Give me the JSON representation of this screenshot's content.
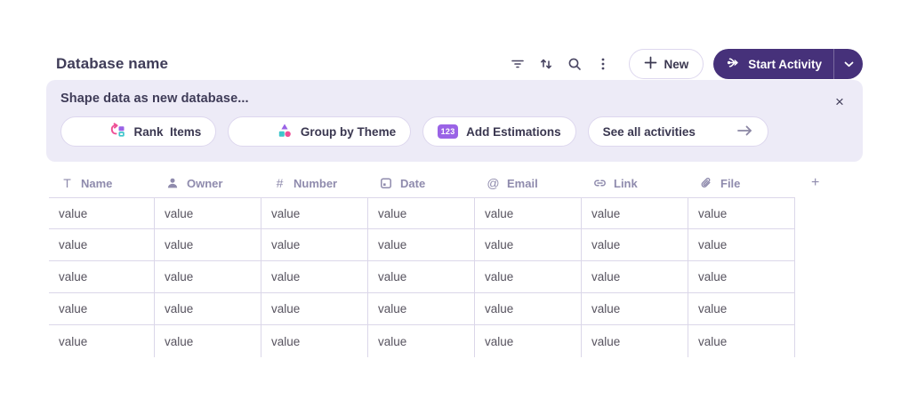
{
  "header": {
    "title": "Database name",
    "toolbar_icons": [
      "filter-icon",
      "sort-icon",
      "search-icon",
      "overflow-menu-icon"
    ],
    "new_button_label": "New",
    "start_activity_label": "Start Activity"
  },
  "banner": {
    "title": "Shape data as new database...",
    "close_label": "×",
    "pills": [
      {
        "label": "Rank  Items",
        "icon": "rank-items-icon"
      },
      {
        "label": "Group by Theme",
        "icon": "group-by-theme-icon"
      },
      {
        "label": "Add Estimations",
        "badge": "123"
      },
      {
        "label": "See all activities",
        "icon": "arrow-right-icon"
      }
    ]
  },
  "table": {
    "columns": [
      {
        "label": "Name",
        "icon": "text-icon",
        "glyph": "T"
      },
      {
        "label": "Owner",
        "icon": "person-icon"
      },
      {
        "label": "Number",
        "icon": "hash-icon",
        "glyph": "#"
      },
      {
        "label": "Date",
        "icon": "calendar-icon"
      },
      {
        "label": "Email",
        "icon": "at-icon",
        "glyph": "@"
      },
      {
        "label": "Link",
        "icon": "link-icon"
      },
      {
        "label": "File",
        "icon": "paperclip-icon"
      },
      {
        "label": "+",
        "icon": "plus-icon"
      }
    ],
    "rows": [
      [
        "value",
        "value",
        "value",
        "value",
        "value",
        "value",
        "value"
      ],
      [
        "value",
        "value",
        "value",
        "value",
        "value",
        "value",
        "value"
      ],
      [
        "value",
        "value",
        "value",
        "value",
        "value",
        "value",
        "value"
      ],
      [
        "value",
        "value",
        "value",
        "value",
        "value",
        "value",
        "value"
      ],
      [
        "value",
        "value",
        "value",
        "value",
        "value",
        "value",
        "value"
      ]
    ]
  },
  "colors": {
    "primary_button": "#46317A",
    "banner_background": "#EDEBF7",
    "table_border": "#DBD7E9",
    "header_text": "#8F8BAD",
    "accent_pink": "#EE4F96",
    "accent_purple": "#9A63E6",
    "accent_teal": "#3FC6CB"
  }
}
